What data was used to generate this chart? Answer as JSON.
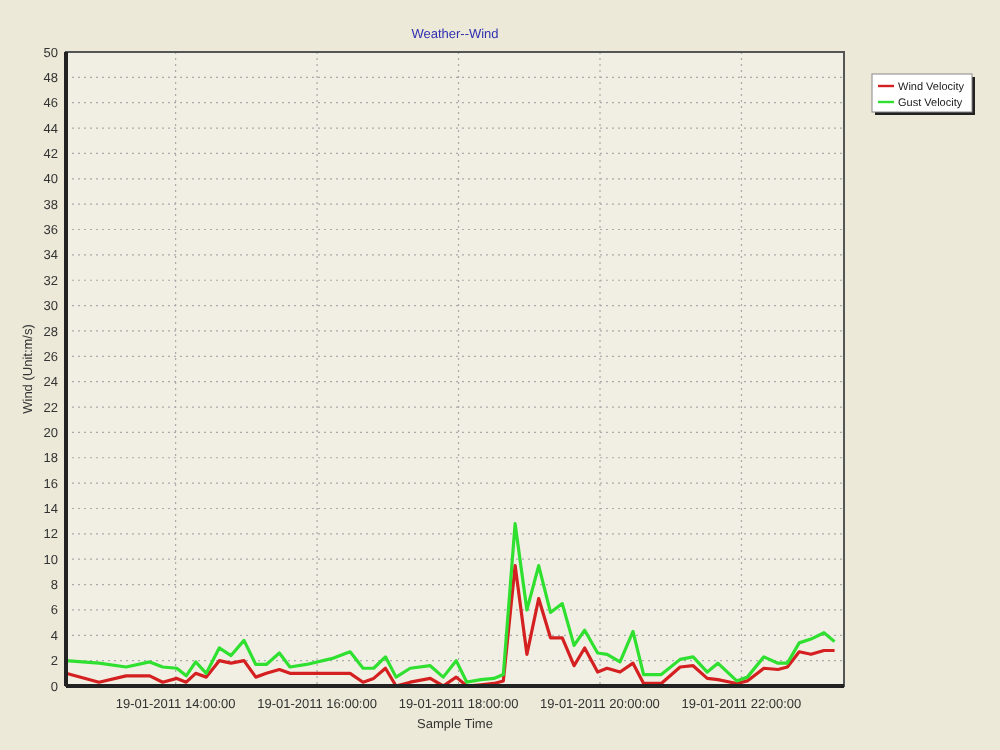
{
  "chart_data": {
    "type": "line",
    "title": "Weather--Wind",
    "xlabel": "Sample Time",
    "ylabel": "Wind (Unit:m/s)",
    "xlim": [
      "2011-01-19T12:27",
      "2011-01-19T23:27"
    ],
    "xticks": [
      {
        "value": "2011-01-19T14:00",
        "label": "19-01-2011 14:00:00"
      },
      {
        "value": "2011-01-19T16:00",
        "label": "19-01-2011 16:00:00"
      },
      {
        "value": "2011-01-19T18:00",
        "label": "19-01-2011 18:00:00"
      },
      {
        "value": "2011-01-19T20:00",
        "label": "19-01-2011 20:00:00"
      },
      {
        "value": "2011-01-19T22:00",
        "label": "19-01-2011 22:00:00"
      }
    ],
    "ylim": [
      0,
      50
    ],
    "yticks": [
      0,
      2,
      4,
      6,
      8,
      10,
      12,
      14,
      16,
      18,
      20,
      22,
      24,
      26,
      28,
      30,
      32,
      34,
      36,
      38,
      40,
      42,
      44,
      46,
      48,
      50
    ],
    "x": [
      "2011-01-19T12:27",
      "2011-01-19T12:55",
      "2011-01-19T13:18",
      "2011-01-19T13:38",
      "2011-01-19T13:49",
      "2011-01-19T14:01",
      "2011-01-19T14:09",
      "2011-01-19T14:17",
      "2011-01-19T14:26",
      "2011-01-19T14:37",
      "2011-01-19T14:47",
      "2011-01-19T14:58",
      "2011-01-19T15:08",
      "2011-01-19T15:17",
      "2011-01-19T15:28",
      "2011-01-19T15:37",
      "2011-01-19T15:51",
      "2011-01-19T16:14",
      "2011-01-19T16:28",
      "2011-01-19T16:39",
      "2011-01-19T16:48",
      "2011-01-19T16:58",
      "2011-01-19T17:07",
      "2011-01-19T17:19",
      "2011-01-19T17:36",
      "2011-01-19T17:47",
      "2011-01-19T17:58",
      "2011-01-19T18:07",
      "2011-01-19T18:19",
      "2011-01-19T18:30",
      "2011-01-19T18:38",
      "2011-01-19T18:48",
      "2011-01-19T18:58",
      "2011-01-19T19:08",
      "2011-01-19T19:18",
      "2011-01-19T19:28",
      "2011-01-19T19:38",
      "2011-01-19T19:47",
      "2011-01-19T19:58",
      "2011-01-19T20:06",
      "2011-01-19T20:17",
      "2011-01-19T20:28",
      "2011-01-19T20:37",
      "2011-01-19T20:52",
      "2011-01-19T21:08",
      "2011-01-19T21:19",
      "2011-01-19T21:31",
      "2011-01-19T21:40",
      "2011-01-19T21:56",
      "2011-01-19T22:05",
      "2011-01-19T22:19",
      "2011-01-19T22:31",
      "2011-01-19T22:39",
      "2011-01-19T22:49",
      "2011-01-19T22:59",
      "2011-01-19T23:10",
      "2011-01-19T23:19"
    ],
    "series": [
      {
        "name": "Wind Velocity",
        "color": "#d42020",
        "values": [
          1.0,
          0.3,
          0.8,
          0.8,
          0.3,
          0.6,
          0.3,
          1.0,
          0.7,
          2.0,
          1.8,
          2.0,
          0.7,
          1.0,
          1.3,
          1.0,
          1.0,
          1.0,
          1.0,
          0.3,
          0.6,
          1.4,
          0.0,
          0.3,
          0.6,
          0.0,
          0.7,
          0.0,
          0.1,
          0.2,
          0.4,
          9.5,
          2.5,
          6.9,
          3.8,
          3.8,
          1.6,
          3.0,
          1.1,
          1.4,
          1.1,
          1.8,
          0.2,
          0.2,
          1.5,
          1.6,
          0.6,
          0.5,
          0.2,
          0.4,
          1.4,
          1.3,
          1.5,
          2.7,
          2.5,
          2.8,
          2.8
        ]
      },
      {
        "name": "Gust Velocity",
        "color": "#30e030",
        "values": [
          2.0,
          1.8,
          1.5,
          1.9,
          1.5,
          1.4,
          0.8,
          1.9,
          1.0,
          3.0,
          2.4,
          3.6,
          1.7,
          1.7,
          2.6,
          1.5,
          1.7,
          2.2,
          2.7,
          1.4,
          1.4,
          2.3,
          0.7,
          1.4,
          1.6,
          0.7,
          2.0,
          0.3,
          0.5,
          0.6,
          0.9,
          12.8,
          6.0,
          9.5,
          5.8,
          6.5,
          3.2,
          4.4,
          2.6,
          2.5,
          1.9,
          4.3,
          0.9,
          0.9,
          2.1,
          2.3,
          1.1,
          1.8,
          0.4,
          0.7,
          2.3,
          1.8,
          1.8,
          3.4,
          3.7,
          4.2,
          3.5
        ]
      }
    ],
    "grid": true,
    "legend": "right",
    "line_style": "solid",
    "marker": "none"
  }
}
